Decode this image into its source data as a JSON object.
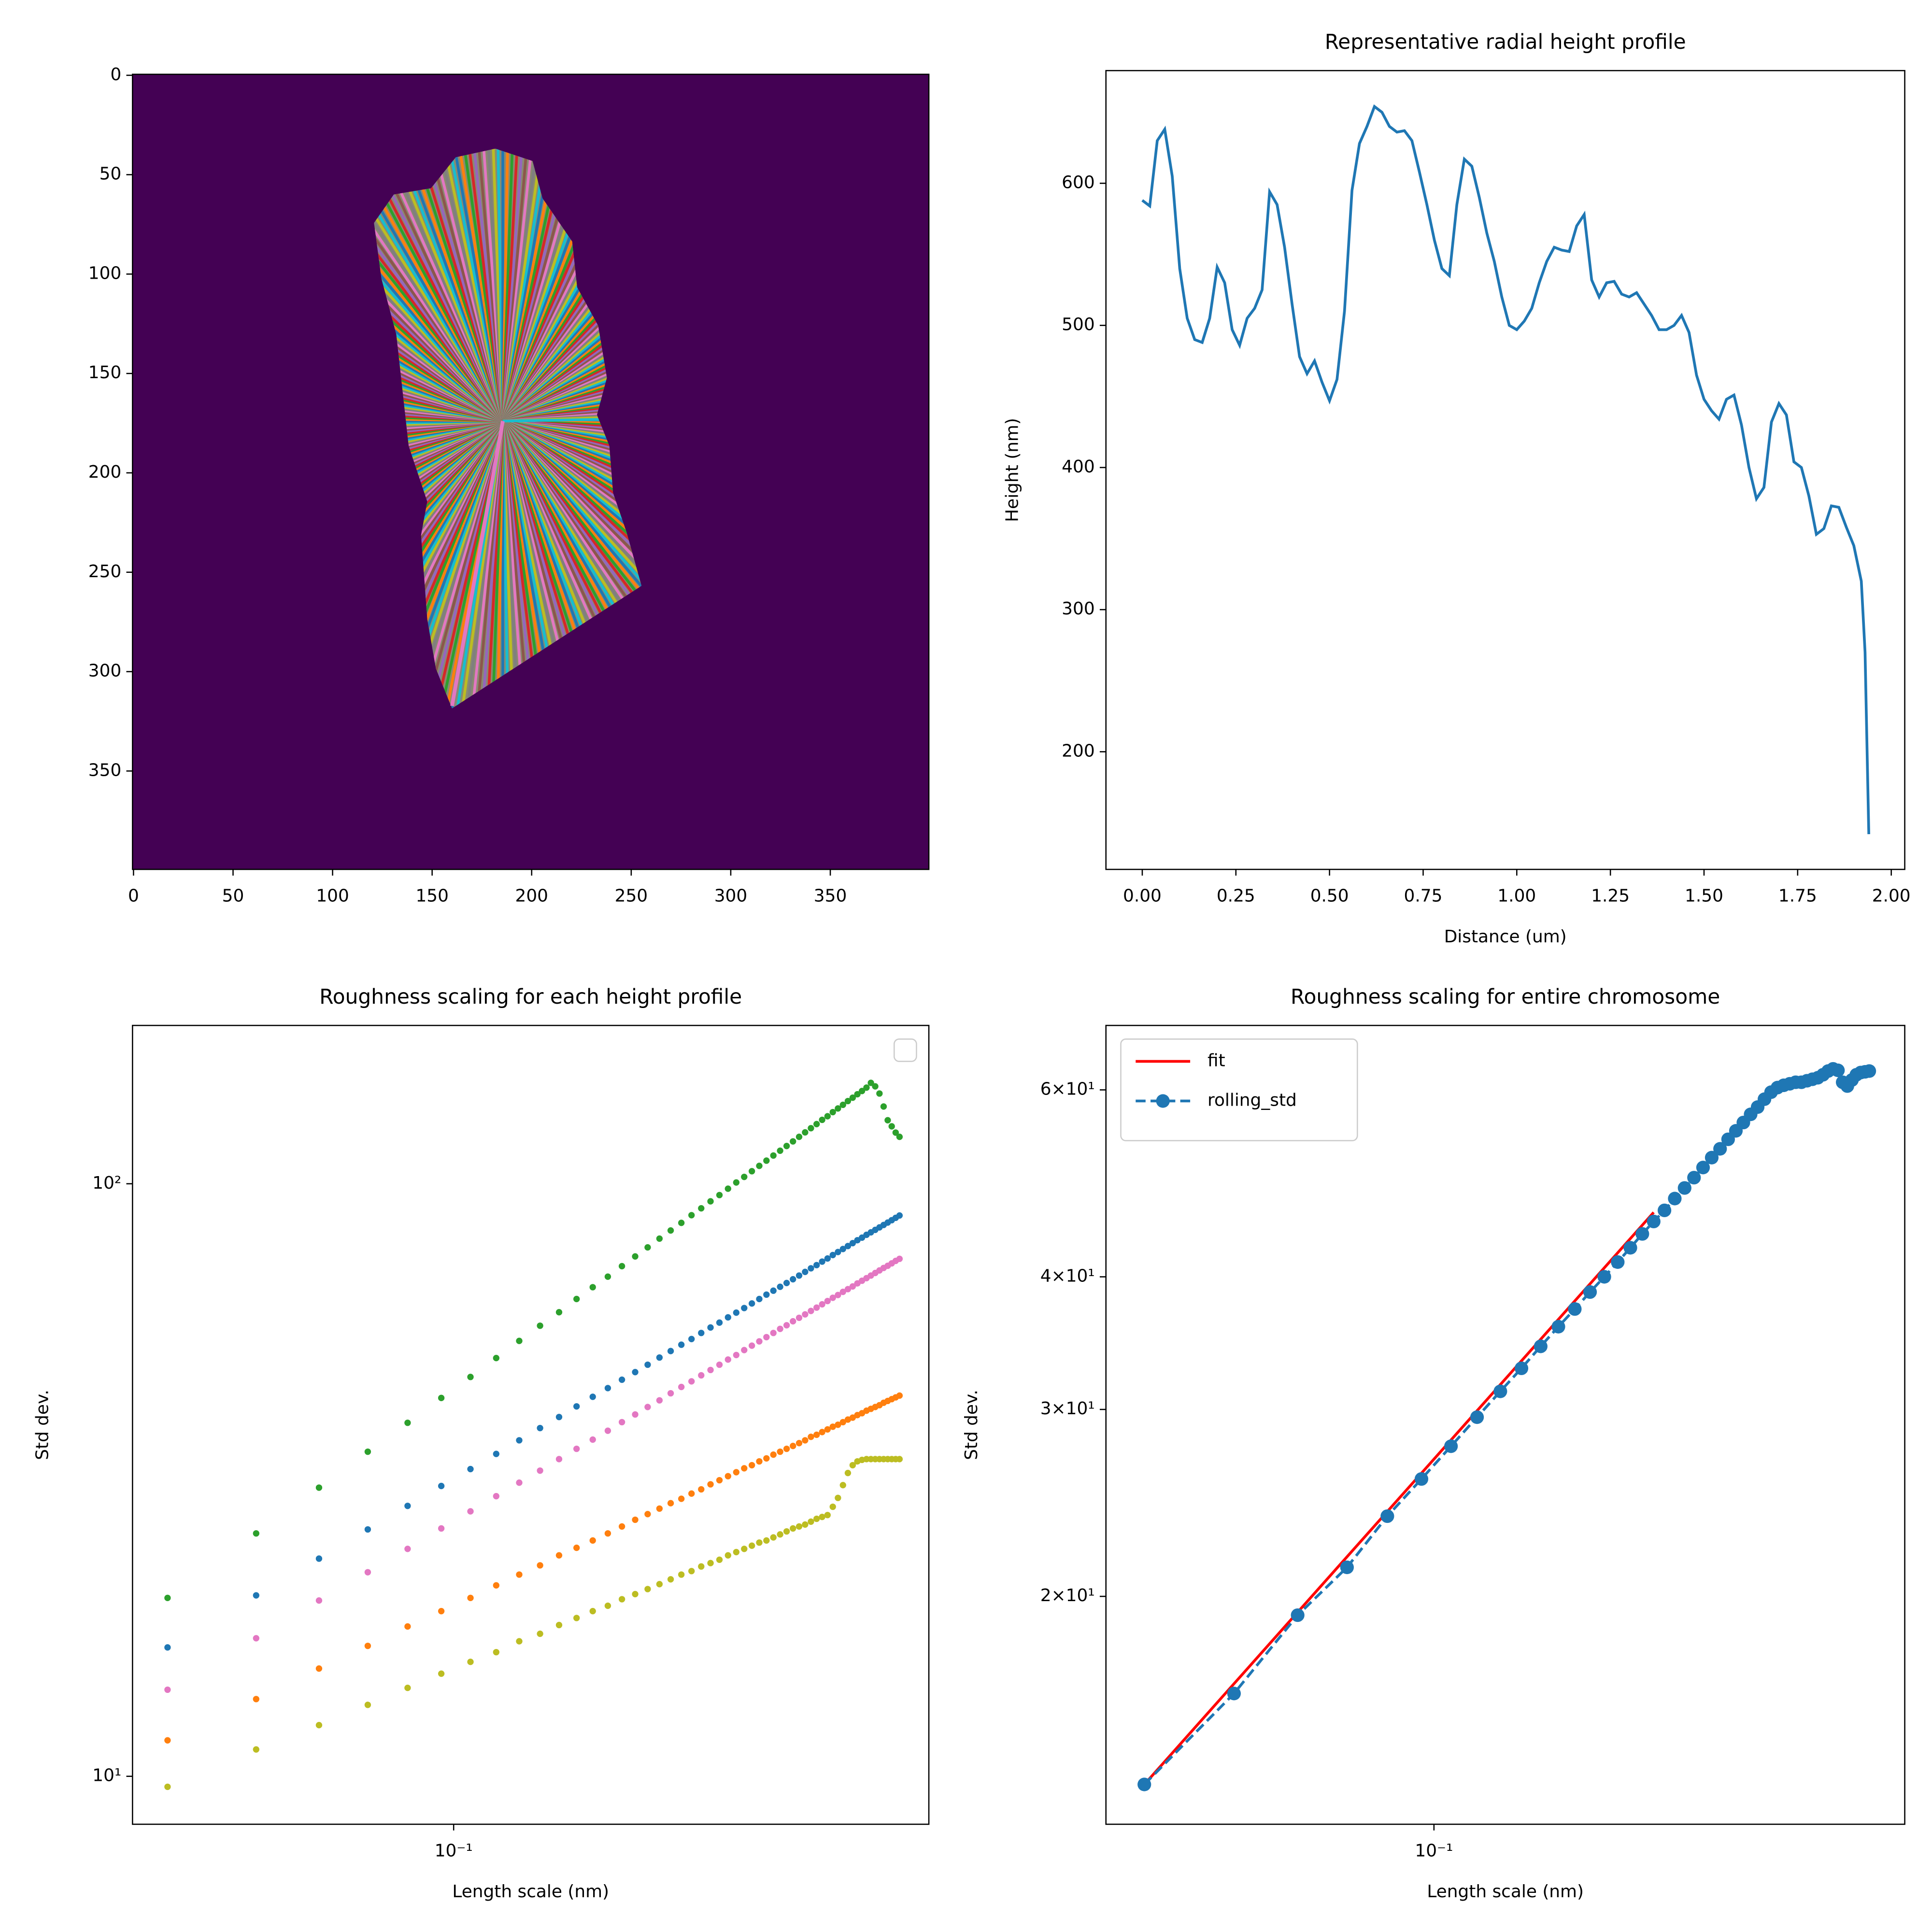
{
  "chart_data": [
    {
      "type": "image",
      "background": "#440154",
      "xlim": [
        -0.5,
        399.5
      ],
      "ylim": [
        399.5,
        -0.5
      ],
      "xticks": [
        0,
        50,
        100,
        150,
        200,
        250,
        300,
        350
      ],
      "yticks": [
        0,
        50,
        100,
        150,
        200,
        250,
        300,
        350
      ]
    },
    {
      "type": "line",
      "title": "Representative radial height profile",
      "xlabel": "Distance (um)",
      "ylabel": "Height (nm)",
      "color": "#1f77b4",
      "x": [
        0,
        0.02,
        0.04,
        0.06,
        0.08,
        0.1,
        0.12,
        0.14,
        0.16,
        0.18,
        0.2,
        0.22,
        0.24,
        0.26,
        0.28,
        0.3,
        0.32,
        0.34,
        0.36,
        0.38,
        0.4,
        0.42,
        0.44,
        0.46,
        0.48,
        0.5,
        0.52,
        0.54,
        0.56,
        0.58,
        0.6,
        0.62,
        0.64,
        0.66,
        0.68,
        0.7,
        0.72,
        0.74,
        0.76,
        0.78,
        0.8,
        0.82,
        0.84,
        0.86,
        0.88,
        0.9,
        0.92,
        0.94,
        0.96,
        0.98,
        1,
        1.02,
        1.04,
        1.06,
        1.08,
        1.1,
        1.12,
        1.14,
        1.16,
        1.18,
        1.2,
        1.22,
        1.24,
        1.26,
        1.28,
        1.3,
        1.32,
        1.34,
        1.36,
        1.38,
        1.4,
        1.42,
        1.44,
        1.46,
        1.48,
        1.5,
        1.52,
        1.54,
        1.56,
        1.58,
        1.6,
        1.62,
        1.64,
        1.66,
        1.68,
        1.7,
        1.72,
        1.74,
        1.76,
        1.78,
        1.8,
        1.82,
        1.84,
        1.86,
        1.88,
        1.9,
        1.92,
        1.93,
        1.94
      ],
      "values": [
        588,
        584,
        630,
        638,
        605,
        540,
        505,
        490,
        488,
        505,
        541,
        530,
        497,
        486,
        505,
        512,
        525,
        594,
        585,
        555,
        515,
        478,
        466,
        475,
        460,
        447,
        462,
        510,
        595,
        628,
        640,
        654,
        650,
        640,
        636,
        637,
        630,
        608,
        585,
        560,
        540,
        535,
        585,
        617,
        612,
        590,
        565,
        545,
        520,
        500,
        497,
        503,
        512,
        530,
        545,
        555,
        553,
        552,
        570,
        578,
        532,
        520,
        530,
        531,
        522,
        520,
        523,
        515,
        507,
        497,
        497,
        500,
        507,
        495,
        465,
        448,
        440,
        434,
        448,
        451,
        430,
        400,
        378,
        386,
        432,
        445,
        437,
        404,
        400,
        380,
        353,
        357,
        373,
        372,
        358,
        345,
        320,
        270,
        142
      ],
      "xlim": [
        -0.097,
        2.036
      ],
      "ylim": [
        117.2,
        679.3
      ],
      "xticks": [
        {
          "value": 0,
          "label": "0.00"
        },
        {
          "value": 0.25,
          "label": "0.25"
        },
        {
          "value": 0.5,
          "label": "0.50"
        },
        {
          "value": 0.75,
          "label": "0.75"
        },
        {
          "value": 1,
          "label": "1.00"
        },
        {
          "value": 1.25,
          "label": "1.25"
        },
        {
          "value": 1.5,
          "label": "1.50"
        },
        {
          "value": 1.75,
          "label": "1.75"
        },
        {
          "value": 2,
          "label": "2.00"
        }
      ],
      "yticks": [
        200,
        300,
        400,
        500,
        600
      ]
    },
    {
      "type": "scatter",
      "title": "Roughness scaling for each height profile",
      "xlabel": "Length scale (nm)",
      "ylabel": "Std dev.",
      "xscale": "log",
      "yscale": "log",
      "legend": "upper right",
      "x": [
        0.027,
        0.0405,
        0.054,
        0.0675,
        0.081,
        0.0945,
        0.108,
        0.1215,
        0.135,
        0.1485,
        0.162,
        0.1755,
        0.189,
        0.2025,
        0.216,
        0.2295,
        0.243,
        0.2565,
        0.27,
        0.2835,
        0.297,
        0.3105,
        0.324,
        0.3375,
        0.351,
        0.3645,
        0.378,
        0.3915,
        0.405,
        0.4185,
        0.432,
        0.4455,
        0.459,
        0.4725,
        0.486,
        0.4995,
        0.513,
        0.5265,
        0.54,
        0.5535,
        0.567,
        0.5805,
        0.594,
        0.6075,
        0.621,
        0.6345,
        0.648,
        0.6615,
        0.675,
        0.6885,
        0.702,
        0.7155,
        0.729,
        0.7425,
        0.756,
        0.7695
      ],
      "series": [
        {
          "color": "#2ca02c",
          "values": [
            20.0,
            25.7,
            30.7,
            35.3,
            39.5,
            43.5,
            47.2,
            50.8,
            54.3,
            57.6,
            60.7,
            63.9,
            66.9,
            69.7,
            72.6,
            75.4,
            78.1,
            80.8,
            83.4,
            85.9,
            88.5,
            90.9,
            93.4,
            95.7,
            98.1,
            100.5,
            102.7,
            105.0,
            107.2,
            109.4,
            111.6,
            113.7,
            115.8,
            117.9,
            120.0,
            122.1,
            124.1,
            126.1,
            128.2,
            130.0,
            132.1,
            134.0,
            135.9,
            137.9,
            139.7,
            141.6,
            143.4,
            145.3,
            148.0,
            146.0,
            142.0,
            135.0,
            128.0,
            125.0,
            122.0,
            120.0
          ]
        },
        {
          "color": "#1f77b4",
          "values": [
            16.5,
            20.2,
            23.3,
            26.1,
            28.6,
            30.9,
            33.0,
            35.0,
            36.9,
            38.7,
            40.4,
            42.1,
            43.7,
            45.2,
            46.7,
            48.1,
            49.5,
            50.9,
            52.2,
            53.5,
            54.7,
            56.0,
            57.2,
            58.3,
            59.5,
            60.6,
            61.7,
            62.8,
            63.9,
            65.0,
            66.0,
            67.0,
            68.0,
            69.0,
            70.0,
            71.0,
            72.0,
            72.9,
            73.9,
            74.8,
            75.8,
            76.7,
            77.6,
            78.5,
            79.4,
            80.3,
            81.1,
            82.0,
            82.8,
            83.6,
            84.4,
            85.2,
            86.0,
            86.8,
            87.6,
            88.4
          ]
        },
        {
          "color": "#e377c2",
          "values": [
            14.0,
            17.1,
            19.8,
            22.1,
            24.2,
            26.2,
            28.0,
            29.7,
            31.3,
            32.8,
            34.3,
            35.7,
            37.0,
            38.3,
            39.6,
            40.8,
            42.0,
            43.1,
            44.3,
            45.4,
            46.4,
            47.5,
            48.5,
            49.5,
            50.5,
            51.4,
            52.4,
            53.3,
            54.2,
            55.1,
            56.0,
            56.9,
            57.7,
            58.6,
            59.4,
            60.2,
            61.0,
            61.8,
            62.6,
            63.4,
            64.2,
            64.9,
            65.7,
            66.4,
            67.1,
            67.9,
            68.6,
            69.3,
            70.0,
            70.7,
            71.4,
            72.1,
            72.7,
            73.4,
            74.1,
            74.7
          ]
        },
        {
          "color": "#ff7f0e",
          "values": [
            11.5,
            13.5,
            15.2,
            16.6,
            17.9,
            19.0,
            20.0,
            21.0,
            21.9,
            22.7,
            23.6,
            24.3,
            25.0,
            25.7,
            26.4,
            27.1,
            27.7,
            28.3,
            28.9,
            29.4,
            30.0,
            30.5,
            31.1,
            31.6,
            32.1,
            32.6,
            33.1,
            33.5,
            34.0,
            34.4,
            34.9,
            35.3,
            35.7,
            36.1,
            36.5,
            36.9,
            37.4,
            37.7,
            38.1,
            38.5,
            38.9,
            39.2,
            39.6,
            40.0,
            40.3,
            40.7,
            41.0,
            41.4,
            41.7,
            42.0,
            42.3,
            42.7,
            43.0,
            43.3,
            43.6,
            43.9
          ]
        },
        {
          "color": "#bcbd22",
          "values": [
            9.6,
            11.1,
            12.2,
            13.2,
            14.1,
            14.9,
            15.6,
            16.2,
            16.9,
            17.4,
            18.0,
            18.5,
            19.0,
            19.4,
            19.9,
            20.3,
            20.7,
            21.1,
            21.5,
            21.9,
            22.2,
            22.6,
            22.9,
            23.2,
            23.6,
            23.9,
            24.2,
            24.5,
            24.8,
            25.0,
            25.3,
            25.6,
            25.9,
            26.2,
            26.4,
            26.6,
            26.9,
            27.2,
            27.4,
            27.6,
            28.5,
            29.5,
            31.0,
            32.5,
            33.5,
            34.0,
            34.2,
            34.3,
            34.3,
            34.3,
            34.3,
            34.3,
            34.3,
            34.3,
            34.3,
            34.3
          ]
        }
      ],
      "xlim": [
        0.023,
        0.88
      ],
      "ylim": [
        8.3,
        185
      ],
      "xticks": [
        {
          "value": 0.1,
          "label": "10⁻¹"
        }
      ],
      "yticks": [
        {
          "value": 10,
          "label": "10¹"
        },
        {
          "value": 100,
          "label": "10²"
        }
      ]
    },
    {
      "type": "line",
      "title": "Roughness scaling for entire chromosome",
      "xlabel": "Length scale (nm)",
      "ylabel": "Std dev.",
      "xscale": "log",
      "yscale": "log",
      "legend": "upper left",
      "series": [
        {
          "name": "fit",
          "color": "red",
          "linestyle": "-",
          "x": [
            0.027,
            0.27
          ],
          "values": [
            13.3,
            46.0
          ]
        },
        {
          "name": "rolling_std",
          "color": "#1f77b4",
          "linestyle": "--",
          "marker": "o",
          "x": [
            0.027,
            0.0405,
            0.054,
            0.0675,
            0.081,
            0.0945,
            0.108,
            0.1215,
            0.135,
            0.1485,
            0.162,
            0.1755,
            0.189,
            0.2025,
            0.216,
            0.2295,
            0.243,
            0.2565,
            0.27,
            0.2835,
            0.297,
            0.3105,
            0.324,
            0.3375,
            0.351,
            0.3645,
            0.378,
            0.3915,
            0.405,
            0.4185,
            0.432,
            0.4455,
            0.459,
            0.4725,
            0.486,
            0.4995,
            0.513,
            0.5265,
            0.54,
            0.5535,
            0.567,
            0.5805,
            0.594,
            0.6075,
            0.621,
            0.6345,
            0.648,
            0.6615,
            0.675,
            0.6885,
            0.702,
            0.7155
          ],
          "values": [
            13.3,
            16.2,
            19.2,
            21.3,
            23.8,
            25.8,
            27.7,
            29.5,
            31.2,
            32.8,
            34.4,
            35.9,
            37.3,
            38.7,
            40.0,
            41.3,
            42.6,
            43.9,
            45.1,
            46.2,
            47.4,
            48.5,
            49.6,
            50.7,
            51.8,
            52.8,
            53.9,
            54.9,
            55.9,
            56.9,
            57.8,
            58.8,
            59.7,
            60.3,
            60.6,
            60.8,
            61.0,
            61.0,
            61.2,
            61.4,
            61.6,
            62.0,
            62.5,
            62.8,
            62.6,
            61.0,
            60.5,
            61.3,
            62.0,
            62.3,
            62.4,
            62.5
          ]
        }
      ],
      "xlim": [
        0.0227,
        0.84
      ],
      "ylim": [
        12.2,
        69
      ],
      "xticks": [
        {
          "value": 0.1,
          "label": "10⁻¹"
        }
      ],
      "yticks": [
        {
          "value": 20,
          "label": "2×10¹"
        },
        {
          "value": 30,
          "label": "3×10¹"
        },
        {
          "value": 40,
          "label": "4×10¹"
        },
        {
          "value": 60,
          "label": "6×10¹"
        }
      ]
    }
  ]
}
